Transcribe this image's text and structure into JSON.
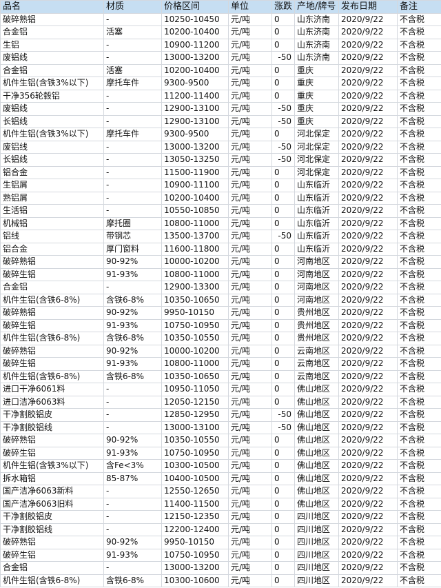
{
  "header_color": "#c6def2",
  "columns": [
    "品名",
    "材质",
    "价格区间",
    "单位",
    "涨跌",
    "产地/牌号",
    "发布日期",
    "备注"
  ],
  "rows": [
    [
      "破碎熟铝",
      "-",
      "10250-10450",
      "元/吨",
      "0",
      "山东济南",
      "2020/9/22",
      "不含税"
    ],
    [
      "合金铝",
      "活塞",
      "10200-10400",
      "元/吨",
      "0",
      "山东济南",
      "2020/9/22",
      "不含税"
    ],
    [
      "生铝",
      "-",
      "10900-11200",
      "元/吨",
      "0",
      "山东济南",
      "2020/9/22",
      "不含税"
    ],
    [
      "废铝线",
      "-",
      "13000-13200",
      "元/吨",
      "-50",
      "山东济南",
      "2020/9/22",
      "不含税"
    ],
    [
      "合金铝",
      "活塞",
      "10200-10400",
      "元/吨",
      "0",
      "重庆",
      "2020/9/22",
      "不含税"
    ],
    [
      "机件生铝(含铁3%以下)",
      "摩托车件",
      "9300-9500",
      "元/吨",
      "0",
      "重庆",
      "2020/9/22",
      "不含税"
    ],
    [
      "干净356轮毂铝",
      "-",
      "11200-11400",
      "元/吨",
      "0",
      "重庆",
      "2020/9/22",
      "不含税"
    ],
    [
      "废铝线",
      "-",
      "12900-13100",
      "元/吨",
      "-50",
      "重庆",
      "2020/9/22",
      "不含税"
    ],
    [
      "长铝线",
      "-",
      "12900-13100",
      "元/吨",
      "-50",
      "重庆",
      "2020/9/22",
      "不含税"
    ],
    [
      "机件生铝(含铁3%以下)",
      "摩托车件",
      "9300-9500",
      "元/吨",
      "0",
      "河北保定",
      "2020/9/22",
      "不含税"
    ],
    [
      "废铝线",
      "-",
      "13000-13200",
      "元/吨",
      "-50",
      "河北保定",
      "2020/9/22",
      "不含税"
    ],
    [
      "长铝线",
      "-",
      "13050-13250",
      "元/吨",
      "-50",
      "河北保定",
      "2020/9/22",
      "不含税"
    ],
    [
      "铝合金",
      "-",
      "11500-11900",
      "元/吨",
      "0",
      "河北保定",
      "2020/9/22",
      "不含税"
    ],
    [
      "生铝屑",
      "-",
      "10900-11100",
      "元/吨",
      "0",
      "山东临沂",
      "2020/9/22",
      "不含税"
    ],
    [
      "熟铝屑",
      "-",
      "10200-10400",
      "元/吨",
      "0",
      "山东临沂",
      "2020/9/22",
      "不含税"
    ],
    [
      "生活铝",
      "-",
      "10550-10850",
      "元/吨",
      "0",
      "山东临沂",
      "2020/9/22",
      "不含税"
    ],
    [
      "机械铝",
      "摩托圈",
      "10800-11000",
      "元/吨",
      "0",
      "山东临沂",
      "2020/9/22",
      "不含税"
    ],
    [
      "铝线",
      "带钢芯",
      "13500-13700",
      "元/吨",
      "-50",
      "山东临沂",
      "2020/9/22",
      "不含税"
    ],
    [
      "铝合金",
      "厚门窗料",
      "11600-11800",
      "元/吨",
      "0",
      "山东临沂",
      "2020/9/22",
      "不含税"
    ],
    [
      "破碎熟铝",
      "90-92%",
      "10000-10200",
      "元/吨",
      "0",
      "河南地区",
      "2020/9/22",
      "不含税"
    ],
    [
      "破碎生铝",
      "91-93%",
      "10800-11000",
      "元/吨",
      "0",
      "河南地区",
      "2020/9/22",
      "不含税"
    ],
    [
      "合金铝",
      "-",
      "12900-13300",
      "元/吨",
      "0",
      "河南地区",
      "2020/9/22",
      "不含税"
    ],
    [
      "机件生铝(含铁6-8%)",
      "含铁6-8%",
      "10350-10650",
      "元/吨",
      "0",
      "河南地区",
      "2020/9/22",
      "不含税"
    ],
    [
      "破碎熟铝",
      "90-92%",
      "9950-10150",
      "元/吨",
      "0",
      "贵州地区",
      "2020/9/22",
      "不含税"
    ],
    [
      "破碎生铝",
      "91-93%",
      "10750-10950",
      "元/吨",
      "0",
      "贵州地区",
      "2020/9/22",
      "不含税"
    ],
    [
      "机件生铝(含铁6-8%)",
      "含铁6-8%",
      "10350-10550",
      "元/吨",
      "0",
      "贵州地区",
      "2020/9/22",
      "不含税"
    ],
    [
      "破碎熟铝",
      "90-92%",
      "10000-10200",
      "元/吨",
      "0",
      "云南地区",
      "2020/9/22",
      "不含税"
    ],
    [
      "破碎生铝",
      "91-93%",
      "10800-11000",
      "元/吨",
      "0",
      "云南地区",
      "2020/9/22",
      "不含税"
    ],
    [
      "机件生铝(含铁6-8%)",
      "含铁6-8%",
      "10350-10650",
      "元/吨",
      "0",
      "云南地区",
      "2020/9/22",
      "不含税"
    ],
    [
      "进口干净6061料",
      "-",
      "10950-11050",
      "元/吨",
      "0",
      "佛山地区",
      "2020/9/22",
      "不含税"
    ],
    [
      "进口洁净6063料",
      "-",
      "12050-12150",
      "元/吨",
      "0",
      "佛山地区",
      "2020/9/22",
      "不含税"
    ],
    [
      "干净割胶铝皮",
      "-",
      "12850-12950",
      "元/吨",
      "-50",
      "佛山地区",
      "2020/9/22",
      "不含税"
    ],
    [
      "干净割胶铝线",
      "-",
      "13000-13100",
      "元/吨",
      "-50",
      "佛山地区",
      "2020/9/22",
      "不含税"
    ],
    [
      "破碎熟铝",
      "90-92%",
      "10350-10550",
      "元/吨",
      "0",
      "佛山地区",
      "2020/9/22",
      "不含税"
    ],
    [
      "破碎生铝",
      "91-93%",
      "10750-10950",
      "元/吨",
      "0",
      "佛山地区",
      "2020/9/22",
      "不含税"
    ],
    [
      "机件生铝(含铁3%以下)",
      "含Fe<3%",
      "10300-10500",
      "元/吨",
      "0",
      "佛山地区",
      "2020/9/22",
      "不含税"
    ],
    [
      "拆水箱铝",
      "85-87%",
      "10400-10500",
      "元/吨",
      "0",
      "佛山地区",
      "2020/9/22",
      "不含税"
    ],
    [
      "国产洁净6063新料",
      "-",
      "12550-12650",
      "元/吨",
      "0",
      "佛山地区",
      "2020/9/22",
      "不含税"
    ],
    [
      "国产洁净6063旧料",
      "-",
      "11400-11500",
      "元/吨",
      "0",
      "佛山地区",
      "2020/9/22",
      "不含税"
    ],
    [
      "干净割胶铝皮",
      "-",
      "12150-12350",
      "元/吨",
      "0",
      "四川地区",
      "2020/9/22",
      "不含税"
    ],
    [
      "干净割胶铝线",
      "-",
      "12200-12400",
      "元/吨",
      "0",
      "四川地区",
      "2020/9/22",
      "不含税"
    ],
    [
      "破碎熟铝",
      "90-92%",
      "9950-10150",
      "元/吨",
      "0",
      "四川地区",
      "2020/9/22",
      "不含税"
    ],
    [
      "破碎生铝",
      "91-93%",
      "10750-10950",
      "元/吨",
      "0",
      "四川地区",
      "2020/9/22",
      "不含税"
    ],
    [
      "合金铝",
      "-",
      "13000-13200",
      "元/吨",
      "0",
      "四川地区",
      "2020/9/22",
      "不含税"
    ],
    [
      "机件生铝(含铁6-8%)",
      "含铁6-8%",
      "10300-10600",
      "元/吨",
      "0",
      "四川地区",
      "2020/9/22",
      "不含税"
    ]
  ]
}
